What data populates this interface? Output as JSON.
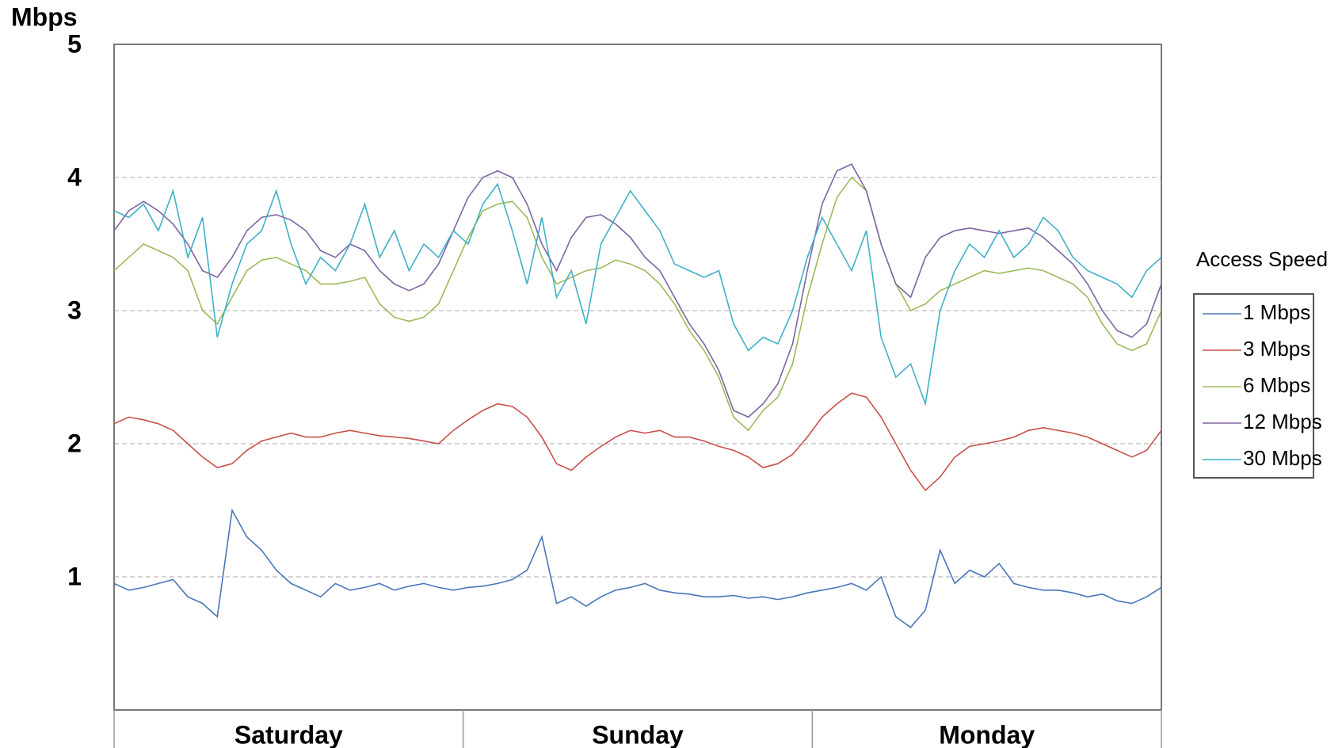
{
  "chart_data": {
    "type": "line",
    "y_unit": "Mbps",
    "x_labels": [
      "Saturday",
      "Sunday",
      "Monday"
    ],
    "legend_title": "Access Speed",
    "legend_position": "right",
    "ylim": [
      0,
      5
    ],
    "yticks": [
      1,
      2,
      3,
      4,
      5
    ],
    "grid": true,
    "series": [
      {
        "name": "1 Mbps",
        "color": "#4a76b8",
        "values": [
          0.95,
          0.9,
          0.92,
          0.95,
          0.98,
          0.85,
          0.8,
          0.7,
          1.5,
          1.3,
          1.2,
          1.05,
          0.95,
          0.9,
          0.85,
          0.95,
          0.9,
          0.92,
          0.95,
          0.9,
          0.93,
          0.95,
          0.92,
          0.9,
          0.92,
          0.93,
          0.95,
          0.98,
          1.05,
          1.3,
          0.8,
          0.85,
          0.78,
          0.85,
          0.9,
          0.92,
          0.95,
          0.9,
          0.88,
          0.87,
          0.85,
          0.85,
          0.86,
          0.84,
          0.85,
          0.83,
          0.85,
          0.88,
          0.9,
          0.92,
          0.95,
          0.9,
          1.0,
          0.7,
          0.62,
          0.75,
          1.2,
          0.95,
          1.05,
          1.0,
          1.1,
          0.95,
          0.92,
          0.9,
          0.9,
          0.88,
          0.85,
          0.87,
          0.82,
          0.8,
          0.85,
          0.92
        ]
      },
      {
        "name": "3 Mbps",
        "color": "#c8504a",
        "values": [
          2.15,
          2.2,
          2.18,
          2.15,
          2.1,
          2.0,
          1.9,
          1.82,
          1.85,
          1.95,
          2.02,
          2.05,
          2.08,
          2.05,
          2.05,
          2.08,
          2.1,
          2.08,
          2.06,
          2.05,
          2.04,
          2.02,
          2.0,
          2.1,
          2.18,
          2.25,
          2.3,
          2.28,
          2.2,
          2.05,
          1.85,
          1.8,
          1.9,
          1.98,
          2.05,
          2.1,
          2.08,
          2.1,
          2.05,
          2.05,
          2.02,
          1.98,
          1.95,
          1.9,
          1.82,
          1.85,
          1.92,
          2.05,
          2.2,
          2.3,
          2.38,
          2.35,
          2.2,
          2.0,
          1.8,
          1.65,
          1.75,
          1.9,
          1.98,
          2.0,
          2.02,
          2.05,
          2.1,
          2.12,
          2.1,
          2.08,
          2.05,
          2.0,
          1.95,
          1.9,
          1.95,
          2.1
        ]
      },
      {
        "name": "6 Mbps",
        "color": "#9abb59",
        "values": [
          3.3,
          3.4,
          3.5,
          3.45,
          3.4,
          3.3,
          3.0,
          2.9,
          3.1,
          3.3,
          3.38,
          3.4,
          3.35,
          3.3,
          3.2,
          3.2,
          3.22,
          3.25,
          3.05,
          2.95,
          2.92,
          2.95,
          3.05,
          3.3,
          3.55,
          3.75,
          3.8,
          3.82,
          3.7,
          3.4,
          3.2,
          3.25,
          3.3,
          3.32,
          3.38,
          3.35,
          3.3,
          3.2,
          3.05,
          2.85,
          2.7,
          2.5,
          2.2,
          2.1,
          2.25,
          2.35,
          2.6,
          3.1,
          3.5,
          3.85,
          4.0,
          3.9,
          3.5,
          3.2,
          3.0,
          3.05,
          3.15,
          3.2,
          3.25,
          3.3,
          3.28,
          3.3,
          3.32,
          3.3,
          3.25,
          3.2,
          3.1,
          2.9,
          2.75,
          2.7,
          2.75,
          3.0
        ]
      },
      {
        "name": "12 Mbps",
        "color": "#7f64a2",
        "values": [
          3.6,
          3.75,
          3.82,
          3.75,
          3.65,
          3.5,
          3.3,
          3.25,
          3.4,
          3.6,
          3.7,
          3.72,
          3.68,
          3.6,
          3.45,
          3.4,
          3.5,
          3.45,
          3.3,
          3.2,
          3.15,
          3.2,
          3.35,
          3.6,
          3.85,
          4.0,
          4.05,
          4.0,
          3.8,
          3.5,
          3.3,
          3.55,
          3.7,
          3.72,
          3.65,
          3.55,
          3.4,
          3.3,
          3.1,
          2.9,
          2.75,
          2.55,
          2.25,
          2.2,
          2.3,
          2.45,
          2.75,
          3.3,
          3.8,
          4.05,
          4.1,
          3.9,
          3.5,
          3.2,
          3.1,
          3.4,
          3.55,
          3.6,
          3.62,
          3.6,
          3.58,
          3.6,
          3.62,
          3.55,
          3.45,
          3.35,
          3.2,
          3.0,
          2.85,
          2.8,
          2.9,
          3.2
        ]
      },
      {
        "name": "30 Mbps",
        "color": "#3fb0c8",
        "values": [
          3.75,
          3.7,
          3.8,
          3.6,
          3.9,
          3.4,
          3.7,
          2.8,
          3.2,
          3.5,
          3.6,
          3.9,
          3.5,
          3.2,
          3.4,
          3.3,
          3.5,
          3.8,
          3.4,
          3.6,
          3.3,
          3.5,
          3.4,
          3.6,
          3.5,
          3.8,
          3.95,
          3.6,
          3.2,
          3.7,
          3.1,
          3.3,
          2.9,
          3.5,
          3.7,
          3.9,
          3.75,
          3.6,
          3.35,
          3.3,
          3.25,
          3.3,
          2.9,
          2.7,
          2.8,
          2.75,
          3.0,
          3.4,
          3.7,
          3.5,
          3.3,
          3.6,
          2.8,
          2.5,
          2.6,
          2.3,
          3.0,
          3.3,
          3.5,
          3.4,
          3.6,
          3.4,
          3.5,
          3.7,
          3.6,
          3.4,
          3.3,
          3.25,
          3.2,
          3.1,
          3.3,
          3.4
        ]
      }
    ]
  }
}
